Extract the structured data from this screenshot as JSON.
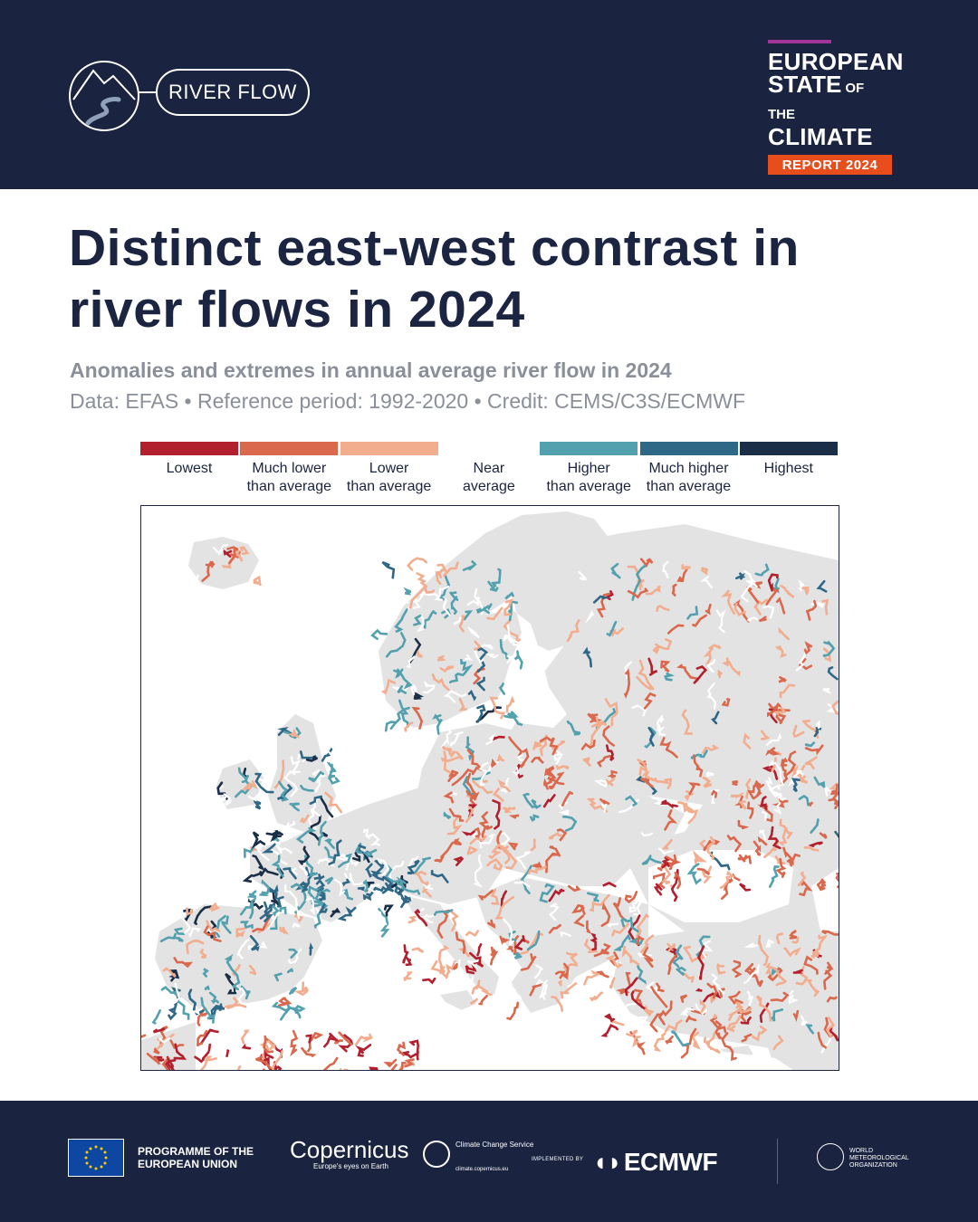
{
  "header": {
    "topic": "RIVER FLOW",
    "topic_icon": "mountain-river-icon",
    "report_brand": {
      "line1": "EUROPEAN",
      "line2_big": "STATE",
      "line2_small": "OF THE",
      "line3": "CLIMATE",
      "badge": "REPORT 2024"
    }
  },
  "title": "Distinct east-west contrast in river flows in 2024",
  "subtitle": "Anomalies and extremes in annual average river flow in 2024",
  "credit": "Data: EFAS • Reference period: 1992-2020 • Credit: CEMS/C3S/ECMWF",
  "legend": {
    "items": [
      {
        "label": "Lowest",
        "color": "#b21f2d"
      },
      {
        "label": "Much lower than average",
        "color": "#d9684c"
      },
      {
        "label": "Lower than average",
        "color": "#f2ad8e"
      },
      {
        "label": "Near average",
        "color": "#ffffff"
      },
      {
        "label": "Higher than average",
        "color": "#53a0ae"
      },
      {
        "label": "Much higher than average",
        "color": "#2f6887"
      },
      {
        "label": "Highest",
        "color": "#1a2e48"
      }
    ]
  },
  "map": {
    "land_color": "#e3e3e3",
    "sea_color": "#ffffff"
  },
  "footer": {
    "eu_text": "PROGRAMME OF THE EUROPEAN UNION",
    "copernicus_name": "opernicus",
    "copernicus_tag": "Europe's eyes on Earth",
    "c3s_text": "Climate Change Service",
    "c3s_url": "climate.copernicus.eu",
    "implemented_by": "IMPLEMENTED BY",
    "ecmwf": "ECMWF",
    "wmo_text": "WORLD METEOROLOGICAL ORGANIZATION"
  }
}
